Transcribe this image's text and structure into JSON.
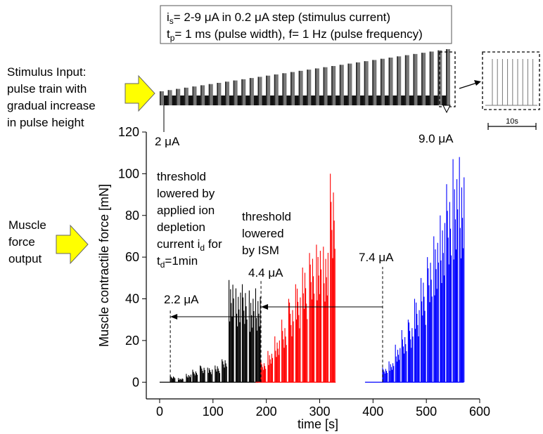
{
  "info_box": {
    "line1_pre": "i",
    "line1_sub": "s",
    "line1_post": "= 2-9 μA in 0.2 μA step (stimulus current)",
    "line2_pre": "t",
    "line2_sub": "p",
    "line2_post": "= 1 ms (pulse width), f= 1 Hz (pulse frequency)"
  },
  "stimulus": {
    "label_lines": [
      "Stimulus Input:",
      "pulse train with",
      "gradual increase",
      "in pulse height"
    ],
    "start_label": "2 μA",
    "end_label": "9.0 μA",
    "inset_scale_label": "10s",
    "arrow_color": "#ffff00"
  },
  "muscle": {
    "label_lines": [
      "Muscle",
      "force",
      "output"
    ],
    "arrow_color": "#ffff00"
  },
  "annotations": {
    "black_note": {
      "lines": [
        "threshold",
        "lowered by",
        "applied ion",
        "depletion"
      ],
      "line5_pre": "current i",
      "line5_sub": "d",
      "line5_post": " for",
      "line6_pre": "t",
      "line6_sub": "d",
      "line6_post": "=1min"
    },
    "red_note": {
      "lines": [
        "threshold",
        "lowered",
        "by ISM"
      ]
    },
    "blue_threshold": "7.4 μA",
    "red_threshold": "4.4 μA",
    "black_threshold": "2.2 μA"
  },
  "chart_data": {
    "type": "bar",
    "xlabel": "time [s]",
    "ylabel": "Muscle contractile force [mN]",
    "xlim": [
      -25,
      600
    ],
    "ylim": [
      -8,
      120
    ],
    "xticks": [
      0,
      100,
      200,
      300,
      400,
      500,
      600
    ],
    "yticks": [
      0,
      20,
      40,
      60,
      80,
      100,
      120
    ],
    "grid": false,
    "series": [
      {
        "color": "#000000",
        "baseline_range": [
          0,
          185
        ],
        "threshold_time": 20,
        "bursts": [
          {
            "t": 20,
            "v": 3
          },
          {
            "t": 35,
            "v": 2
          },
          {
            "t": 50,
            "v": 4
          },
          {
            "t": 62,
            "v": 6
          },
          {
            "t": 76,
            "v": 8
          },
          {
            "t": 90,
            "v": 7
          },
          {
            "t": 104,
            "v": 8
          },
          {
            "t": 117,
            "v": 11
          },
          {
            "t": 130,
            "v": 49
          },
          {
            "t": 143,
            "v": 45
          },
          {
            "t": 155,
            "v": 47
          },
          {
            "t": 168,
            "v": 44
          },
          {
            "t": 180,
            "v": 45
          }
        ]
      },
      {
        "color": "#ff0000",
        "baseline_range": [
          180,
          330
        ],
        "threshold_time": 190,
        "bursts": [
          {
            "t": 190,
            "v": 10
          },
          {
            "t": 203,
            "v": 15
          },
          {
            "t": 216,
            "v": 22
          },
          {
            "t": 229,
            "v": 30
          },
          {
            "t": 242,
            "v": 40
          },
          {
            "t": 255,
            "v": 47
          },
          {
            "t": 268,
            "v": 55
          },
          {
            "t": 281,
            "v": 62
          },
          {
            "t": 294,
            "v": 66
          },
          {
            "t": 307,
            "v": 65
          },
          {
            "t": 320,
            "v": 100
          }
        ]
      },
      {
        "color": "#0000ff",
        "baseline_range": [
          385,
          570
        ],
        "threshold_time": 418,
        "bursts": [
          {
            "t": 418,
            "v": 7
          },
          {
            "t": 430,
            "v": 10
          },
          {
            "t": 442,
            "v": 18
          },
          {
            "t": 454,
            "v": 25
          },
          {
            "t": 466,
            "v": 30
          },
          {
            "t": 478,
            "v": 40
          },
          {
            "t": 490,
            "v": 50
          },
          {
            "t": 502,
            "v": 60
          },
          {
            "t": 514,
            "v": 70
          },
          {
            "t": 526,
            "v": 80
          },
          {
            "t": 538,
            "v": 95
          },
          {
            "t": 550,
            "v": 107
          },
          {
            "t": 562,
            "v": 108
          }
        ]
      }
    ]
  }
}
